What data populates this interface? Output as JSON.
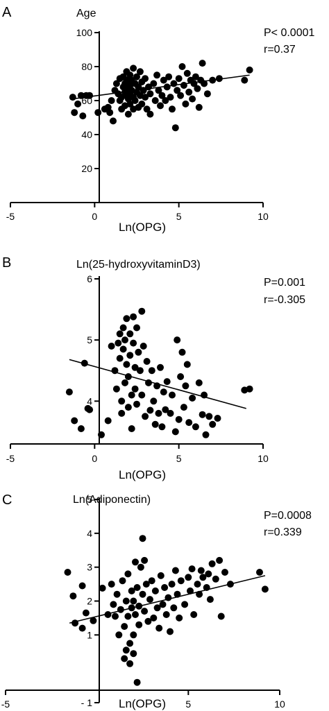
{
  "chart_data": [
    {
      "type": "scatter",
      "panel": "A",
      "title": "Age",
      "xlabel": "Ln(OPG)",
      "ylabel": "",
      "stats": [
        "P< 0.0001",
        "r=0.37"
      ],
      "xlim": [
        -5,
        10
      ],
      "ylim": [
        0,
        100
      ],
      "xticks": [
        "-5",
        "0",
        "5",
        "10"
      ],
      "yticks": [
        "20",
        "40",
        "60",
        "80",
        "100"
      ],
      "trendline": [
        [
          -1.3,
          61
        ],
        [
          9.2,
          75
        ]
      ],
      "points": [
        [
          -1.3,
          62
        ],
        [
          -1.0,
          58
        ],
        [
          -0.8,
          63
        ],
        [
          -0.5,
          63
        ],
        [
          -0.3,
          63
        ],
        [
          -1.2,
          53
        ],
        [
          -0.7,
          51
        ],
        [
          0.2,
          53
        ],
        [
          0.6,
          55
        ],
        [
          0.8,
          56
        ],
        [
          0.9,
          53
        ],
        [
          1.0,
          60
        ],
        [
          1.1,
          48
        ],
        [
          1.2,
          66
        ],
        [
          1.3,
          70
        ],
        [
          1.4,
          64
        ],
        [
          1.5,
          73
        ],
        [
          1.5,
          60
        ],
        [
          1.6,
          62
        ],
        [
          1.6,
          55
        ],
        [
          1.7,
          68
        ],
        [
          1.7,
          74
        ],
        [
          1.8,
          65
        ],
        [
          1.8,
          70
        ],
        [
          1.8,
          57
        ],
        [
          1.9,
          72
        ],
        [
          1.9,
          63
        ],
        [
          1.9,
          77
        ],
        [
          2.0,
          67
        ],
        [
          2.0,
          61
        ],
        [
          2.0,
          52
        ],
        [
          2.1,
          75
        ],
        [
          2.1,
          69
        ],
        [
          2.1,
          64
        ],
        [
          2.1,
          58
        ],
        [
          2.2,
          72
        ],
        [
          2.2,
          66
        ],
        [
          2.3,
          79
        ],
        [
          2.3,
          62
        ],
        [
          2.3,
          55
        ],
        [
          2.4,
          70
        ],
        [
          2.4,
          60
        ],
        [
          2.5,
          74
        ],
        [
          2.5,
          65
        ],
        [
          2.6,
          68
        ],
        [
          2.6,
          56
        ],
        [
          2.7,
          77
        ],
        [
          2.7,
          63
        ],
        [
          2.8,
          71
        ],
        [
          2.8,
          58
        ],
        [
          2.9,
          66
        ],
        [
          3.0,
          73
        ],
        [
          3.0,
          62
        ],
        [
          3.1,
          55
        ],
        [
          3.2,
          68
        ],
        [
          3.3,
          64
        ],
        [
          3.3,
          52
        ],
        [
          3.5,
          70
        ],
        [
          3.6,
          60
        ],
        [
          3.7,
          75
        ],
        [
          3.8,
          66
        ],
        [
          3.9,
          57
        ],
        [
          4.0,
          63
        ],
        [
          4.1,
          72
        ],
        [
          4.2,
          60
        ],
        [
          4.3,
          68
        ],
        [
          4.4,
          74
        ],
        [
          4.5,
          62
        ],
        [
          4.6,
          55
        ],
        [
          4.7,
          70
        ],
        [
          4.8,
          44
        ],
        [
          4.9,
          66
        ],
        [
          5.0,
          73
        ],
        [
          5.1,
          63
        ],
        [
          5.2,
          80
        ],
        [
          5.3,
          69
        ],
        [
          5.4,
          58
        ],
        [
          5.5,
          76
        ],
        [
          5.6,
          65
        ],
        [
          5.7,
          72
        ],
        [
          5.8,
          61
        ],
        [
          5.9,
          70
        ],
        [
          6.0,
          74
        ],
        [
          6.1,
          67
        ],
        [
          6.2,
          56
        ],
        [
          6.3,
          72
        ],
        [
          6.4,
          82
        ],
        [
          6.5,
          70
        ],
        [
          6.7,
          64
        ],
        [
          7.0,
          72
        ],
        [
          7.4,
          73
        ],
        [
          8.9,
          72
        ],
        [
          9.2,
          78
        ]
      ]
    },
    {
      "type": "scatter",
      "panel": "B",
      "title": "Ln(25-hydroxyvitaminD3)",
      "xlabel": "Ln(OPG)",
      "ylabel": "",
      "stats": [
        "P=0.001",
        "r=-0.305"
      ],
      "xlim": [
        -5,
        10
      ],
      "ylim": [
        3.3,
        6
      ],
      "xticks": [
        "-5",
        "0",
        "5",
        "10"
      ],
      "yticks": [
        "4",
        "5",
        "6"
      ],
      "trendline": [
        [
          -1.5,
          4.68
        ],
        [
          9.0,
          3.88
        ]
      ],
      "points": [
        [
          -1.5,
          4.15
        ],
        [
          -1.2,
          3.68
        ],
        [
          -0.8,
          3.55
        ],
        [
          -0.6,
          4.62
        ],
        [
          -0.4,
          3.88
        ],
        [
          -0.3,
          3.86
        ],
        [
          0.4,
          3.45
        ],
        [
          0.8,
          3.68
        ],
        [
          1.0,
          4.9
        ],
        [
          1.2,
          4.5
        ],
        [
          1.3,
          4.2
        ],
        [
          1.4,
          4.95
        ],
        [
          1.5,
          5.1
        ],
        [
          1.5,
          4.7
        ],
        [
          1.6,
          4.0
        ],
        [
          1.6,
          3.8
        ],
        [
          1.7,
          5.2
        ],
        [
          1.7,
          4.85
        ],
        [
          1.8,
          4.3
        ],
        [
          1.8,
          5.0
        ],
        [
          1.9,
          5.35
        ],
        [
          1.9,
          4.6
        ],
        [
          2.0,
          4.4
        ],
        [
          2.0,
          3.9
        ],
        [
          2.1,
          5.1
        ],
        [
          2.1,
          4.75
        ],
        [
          2.2,
          4.1
        ],
        [
          2.2,
          3.55
        ],
        [
          2.3,
          5.38
        ],
        [
          2.3,
          4.95
        ],
        [
          2.4,
          4.55
        ],
        [
          2.4,
          4.2
        ],
        [
          2.5,
          3.95
        ],
        [
          2.5,
          5.2
        ],
        [
          2.6,
          4.8
        ],
        [
          2.7,
          4.5
        ],
        [
          2.8,
          5.47
        ],
        [
          2.8,
          4.1
        ],
        [
          2.9,
          4.9
        ],
        [
          3.0,
          3.75
        ],
        [
          3.1,
          4.65
        ],
        [
          3.2,
          4.3
        ],
        [
          3.3,
          3.85
        ],
        [
          3.4,
          4.5
        ],
        [
          3.5,
          4.0
        ],
        [
          3.6,
          3.62
        ],
        [
          3.7,
          4.25
        ],
        [
          3.8,
          3.8
        ],
        [
          3.9,
          4.55
        ],
        [
          4.0,
          3.58
        ],
        [
          4.1,
          4.15
        ],
        [
          4.2,
          3.86
        ],
        [
          4.3,
          4.32
        ],
        [
          4.5,
          3.8
        ],
        [
          4.6,
          4.1
        ],
        [
          4.8,
          3.5
        ],
        [
          4.9,
          5.0
        ],
        [
          5.0,
          3.7
        ],
        [
          5.1,
          4.4
        ],
        [
          5.2,
          4.8
        ],
        [
          5.3,
          3.9
        ],
        [
          5.4,
          4.25
        ],
        [
          5.5,
          4.6
        ],
        [
          5.6,
          3.65
        ],
        [
          5.8,
          4.05
        ],
        [
          6.0,
          3.58
        ],
        [
          6.2,
          4.3
        ],
        [
          6.4,
          3.78
        ],
        [
          6.5,
          4.1
        ],
        [
          6.6,
          3.45
        ],
        [
          6.8,
          3.75
        ],
        [
          7.0,
          3.62
        ],
        [
          7.3,
          3.72
        ],
        [
          8.9,
          4.18
        ],
        [
          9.2,
          4.2
        ]
      ]
    },
    {
      "type": "scatter",
      "panel": "C",
      "title": "Ln(Adiponectin)",
      "xlabel": "Ln(OPG)",
      "ylabel": "",
      "stats": [
        "P=0.0008",
        "r=0.339"
      ],
      "xlim": [
        -5,
        10
      ],
      "ylim": [
        -1,
        5
      ],
      "xticks": [
        "-5",
        "5",
        "10"
      ],
      "yticks": [
        "- 1",
        "1",
        "2",
        "3",
        "4",
        "5"
      ],
      "trendline": [
        [
          -1.5,
          1.35
        ],
        [
          9.2,
          2.75
        ]
      ],
      "points": [
        [
          -1.6,
          2.85
        ],
        [
          -1.3,
          2.15
        ],
        [
          -1.2,
          1.35
        ],
        [
          -0.8,
          1.2
        ],
        [
          -0.6,
          1.65
        ],
        [
          -0.8,
          2.45
        ],
        [
          -0.2,
          1.42
        ],
        [
          0.3,
          2.38
        ],
        [
          0.6,
          1.6
        ],
        [
          0.8,
          2.5
        ],
        [
          0.9,
          1.9
        ],
        [
          1.0,
          1.55
        ],
        [
          1.1,
          2.2
        ],
        [
          1.2,
          1.0
        ],
        [
          1.3,
          1.75
        ],
        [
          1.4,
          2.6
        ],
        [
          1.5,
          1.25
        ],
        [
          1.5,
          0.3
        ],
        [
          1.6,
          0.55
        ],
        [
          1.6,
          2.0
        ],
        [
          1.7,
          2.8
        ],
        [
          1.7,
          1.55
        ],
        [
          1.8,
          0.75
        ],
        [
          1.8,
          0.15
        ],
        [
          1.9,
          2.3
        ],
        [
          1.9,
          1.8
        ],
        [
          2.0,
          2.0
        ],
        [
          2.0,
          0.45
        ],
        [
          2.0,
          1.0
        ],
        [
          2.1,
          1.6
        ],
        [
          2.1,
          3.15
        ],
        [
          2.2,
          2.4
        ],
        [
          2.2,
          -0.4
        ],
        [
          2.3,
          1.85
        ],
        [
          2.3,
          1.3
        ],
        [
          2.4,
          3.0
        ],
        [
          2.5,
          2.2
        ],
        [
          2.5,
          3.85
        ],
        [
          2.6,
          1.7
        ],
        [
          2.6,
          3.2
        ],
        [
          2.7,
          2.5
        ],
        [
          2.8,
          1.4
        ],
        [
          2.9,
          2.05
        ],
        [
          3.0,
          2.6
        ],
        [
          3.1,
          1.5
        ],
        [
          3.2,
          2.3
        ],
        [
          3.3,
          1.8
        ],
        [
          3.4,
          1.2
        ],
        [
          3.5,
          2.75
        ],
        [
          3.6,
          1.9
        ],
        [
          3.7,
          2.4
        ],
        [
          3.8,
          1.6
        ],
        [
          3.9,
          2.1
        ],
        [
          4.0,
          1.1
        ],
        [
          4.1,
          2.5
        ],
        [
          4.2,
          1.8
        ],
        [
          4.3,
          2.9
        ],
        [
          4.4,
          2.2
        ],
        [
          4.5,
          1.5
        ],
        [
          4.6,
          2.6
        ],
        [
          4.8,
          1.9
        ],
        [
          5.0,
          2.7
        ],
        [
          5.1,
          2.3
        ],
        [
          5.2,
          2.95
        ],
        [
          5.3,
          1.6
        ],
        [
          5.5,
          2.5
        ],
        [
          5.6,
          2.2
        ],
        [
          5.7,
          2.9
        ],
        [
          5.8,
          2.7
        ],
        [
          6.0,
          2.4
        ],
        [
          6.1,
          2.8
        ],
        [
          6.2,
          2.05
        ],
        [
          6.3,
          3.1
        ],
        [
          6.5,
          2.65
        ],
        [
          6.7,
          3.2
        ],
        [
          7.0,
          2.85
        ],
        [
          7.3,
          2.5
        ],
        [
          8.9,
          2.85
        ],
        [
          9.2,
          2.35
        ],
        [
          6.8,
          1.55
        ]
      ]
    }
  ]
}
